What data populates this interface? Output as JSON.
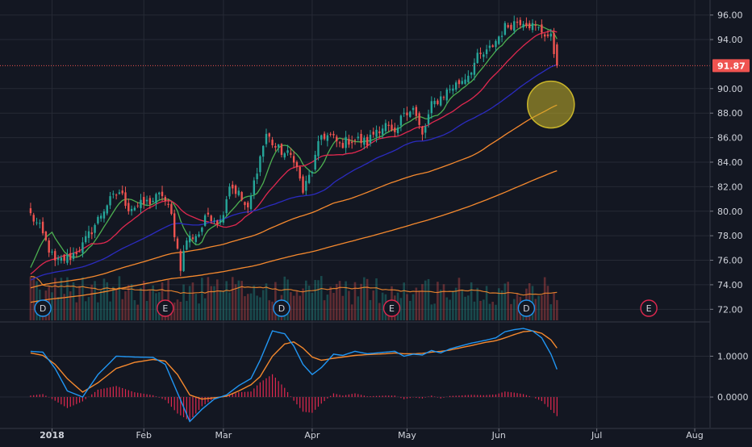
{
  "chart_data": [
    {
      "type": "candlestick",
      "price_axis_ticks": [
        "96.00",
        "94.00",
        "90.00",
        "88.00",
        "86.00",
        "84.00",
        "82.00",
        "80.00",
        "78.00",
        "76.00",
        "74.00",
        "72.00"
      ],
      "tick_values": [
        96,
        94,
        90,
        88,
        86,
        84,
        82,
        80,
        78,
        76,
        74,
        72
      ],
      "ylim": [
        71.1,
        96.7
      ],
      "last_price_label": "91.87",
      "last_price": 91.87,
      "x_labels": [
        "2018",
        "Feb",
        "Mar",
        "Apr",
        "May",
        "Jun",
        "Jul",
        "Aug"
      ],
      "x_label_values": [
        7,
        37,
        63,
        92,
        123,
        153,
        185,
        217
      ],
      "xlim": [
        -10,
        222
      ],
      "last_bar_index": 172,
      "close_anchors": [
        [
          0,
          79.7
        ],
        [
          3,
          78.6
        ],
        [
          8,
          75.8
        ],
        [
          13,
          76.3
        ],
        [
          17,
          77.2
        ],
        [
          21,
          78.9
        ],
        [
          25,
          80.6
        ],
        [
          29,
          81.6
        ],
        [
          32,
          80.3
        ],
        [
          36,
          80.5
        ],
        [
          40,
          80.9
        ],
        [
          43,
          81.4
        ],
        [
          46,
          79.6
        ],
        [
          49,
          75.5
        ],
        [
          51,
          77.7
        ],
        [
          55,
          78.2
        ],
        [
          58,
          79.8
        ],
        [
          62,
          79.1
        ],
        [
          65,
          82.2
        ],
        [
          68,
          81.4
        ],
        [
          71,
          80.0
        ],
        [
          74,
          83.5
        ],
        [
          77,
          86.3
        ],
        [
          80,
          85.2
        ],
        [
          83,
          84.7
        ],
        [
          86,
          84.4
        ],
        [
          89,
          81.6
        ],
        [
          92,
          83.4
        ],
        [
          95,
          86.2
        ],
        [
          98,
          86.1
        ],
        [
          101,
          85.4
        ],
        [
          104,
          85.8
        ],
        [
          107,
          85.8
        ],
        [
          110,
          85.6
        ],
        [
          113,
          86.7
        ],
        [
          116,
          87.0
        ],
        [
          119,
          86.0
        ],
        [
          122,
          88.2
        ],
        [
          125,
          88.4
        ],
        [
          128,
          86.1
        ],
        [
          131,
          88.6
        ],
        [
          134,
          89.3
        ],
        [
          137,
          90.0
        ],
        [
          140,
          90.5
        ],
        [
          143,
          91.2
        ],
        [
          146,
          92.5
        ],
        [
          149,
          92.9
        ],
        [
          152,
          93.9
        ],
        [
          155,
          95.0
        ],
        [
          158,
          95.4
        ],
        [
          161,
          95.6
        ],
        [
          164,
          95.1
        ],
        [
          167,
          94.7
        ],
        [
          170,
          94.1
        ],
        [
          172,
          91.87
        ]
      ],
      "moving_averages": [
        {
          "color": "#4caf50",
          "period": 8
        },
        {
          "color": "#e0284f",
          "period": 21
        },
        {
          "color": "#2b2bbf",
          "period": 50
        },
        {
          "color": "#f5892e",
          "period": 100
        },
        {
          "color": "#f5892e",
          "period": 200
        }
      ],
      "event_markers": [
        {
          "label": "D",
          "index": 4,
          "color": "#2196f3"
        },
        {
          "label": "E",
          "index": 44,
          "color": "#e0284f"
        },
        {
          "label": "D",
          "index": 82,
          "color": "#2196f3"
        },
        {
          "label": "E",
          "index": 118,
          "color": "#e0284f"
        },
        {
          "label": "D",
          "index": 162,
          "color": "#2196f3"
        },
        {
          "label": "E",
          "index": 202,
          "color": "#e0284f"
        }
      ],
      "highlight": {
        "index": 170,
        "price": 88.7,
        "color": "#c9b52a"
      },
      "colors": {
        "up": "#26a69a",
        "down": "#ef5350",
        "background": "#131722",
        "grid": "#262a35",
        "text": "#d1d4dc",
        "price_line": "#ef5350"
      }
    },
    {
      "type": "oscillator",
      "tick_labels": [
        "1.0000",
        "0.0000"
      ],
      "tick_values": [
        1.0,
        0.0
      ],
      "ylim": [
        -0.75,
        1.8
      ],
      "macd_anchors": [
        [
          0,
          1.12
        ],
        [
          4,
          1.1
        ],
        [
          8,
          0.7
        ],
        [
          12,
          0.15
        ],
        [
          17,
          0.0
        ],
        [
          22,
          0.55
        ],
        [
          28,
          1.0
        ],
        [
          34,
          0.98
        ],
        [
          40,
          0.97
        ],
        [
          44,
          0.8
        ],
        [
          48,
          0.1
        ],
        [
          52,
          -0.6
        ],
        [
          56,
          -0.3
        ],
        [
          60,
          -0.05
        ],
        [
          64,
          0.05
        ],
        [
          68,
          0.28
        ],
        [
          72,
          0.45
        ],
        [
          75,
          0.9
        ],
        [
          79,
          1.62
        ],
        [
          83,
          1.55
        ],
        [
          86,
          1.25
        ],
        [
          89,
          0.8
        ],
        [
          92,
          0.55
        ],
        [
          95,
          0.72
        ],
        [
          99,
          1.05
        ],
        [
          102,
          1.02
        ],
        [
          106,
          1.12
        ],
        [
          110,
          1.06
        ],
        [
          113,
          1.08
        ],
        [
          116,
          1.1
        ],
        [
          119,
          1.12
        ],
        [
          122,
          1.0
        ],
        [
          125,
          1.05
        ],
        [
          128,
          1.03
        ],
        [
          131,
          1.14
        ],
        [
          134,
          1.08
        ],
        [
          137,
          1.18
        ],
        [
          140,
          1.24
        ],
        [
          144,
          1.32
        ],
        [
          148,
          1.38
        ],
        [
          152,
          1.45
        ],
        [
          155,
          1.6
        ],
        [
          158,
          1.65
        ],
        [
          161,
          1.68
        ],
        [
          164,
          1.62
        ],
        [
          167,
          1.45
        ],
        [
          170,
          1.05
        ],
        [
          172,
          0.68
        ]
      ],
      "signal_anchors": [
        [
          0,
          1.08
        ],
        [
          4,
          1.02
        ],
        [
          8,
          0.8
        ],
        [
          12,
          0.45
        ],
        [
          17,
          0.12
        ],
        [
          22,
          0.35
        ],
        [
          28,
          0.7
        ],
        [
          34,
          0.85
        ],
        [
          40,
          0.92
        ],
        [
          44,
          0.88
        ],
        [
          48,
          0.55
        ],
        [
          52,
          0.05
        ],
        [
          56,
          -0.05
        ],
        [
          60,
          -0.02
        ],
        [
          64,
          0.02
        ],
        [
          68,
          0.15
        ],
        [
          72,
          0.3
        ],
        [
          75,
          0.5
        ],
        [
          79,
          1.0
        ],
        [
          83,
          1.3
        ],
        [
          86,
          1.35
        ],
        [
          89,
          1.2
        ],
        [
          92,
          0.98
        ],
        [
          95,
          0.9
        ],
        [
          99,
          0.95
        ],
        [
          102,
          0.98
        ],
        [
          106,
          1.02
        ],
        [
          110,
          1.04
        ],
        [
          113,
          1.05
        ],
        [
          116,
          1.06
        ],
        [
          119,
          1.08
        ],
        [
          122,
          1.06
        ],
        [
          125,
          1.06
        ],
        [
          128,
          1.07
        ],
        [
          131,
          1.1
        ],
        [
          134,
          1.12
        ],
        [
          137,
          1.15
        ],
        [
          140,
          1.2
        ],
        [
          144,
          1.26
        ],
        [
          148,
          1.33
        ],
        [
          152,
          1.38
        ],
        [
          155,
          1.45
        ],
        [
          158,
          1.53
        ],
        [
          161,
          1.6
        ],
        [
          164,
          1.62
        ],
        [
          167,
          1.56
        ],
        [
          170,
          1.4
        ],
        [
          172,
          1.2
        ]
      ],
      "colors": {
        "macd": "#2196f3",
        "signal": "#f5892e",
        "histogram": "#e0284f"
      }
    }
  ]
}
